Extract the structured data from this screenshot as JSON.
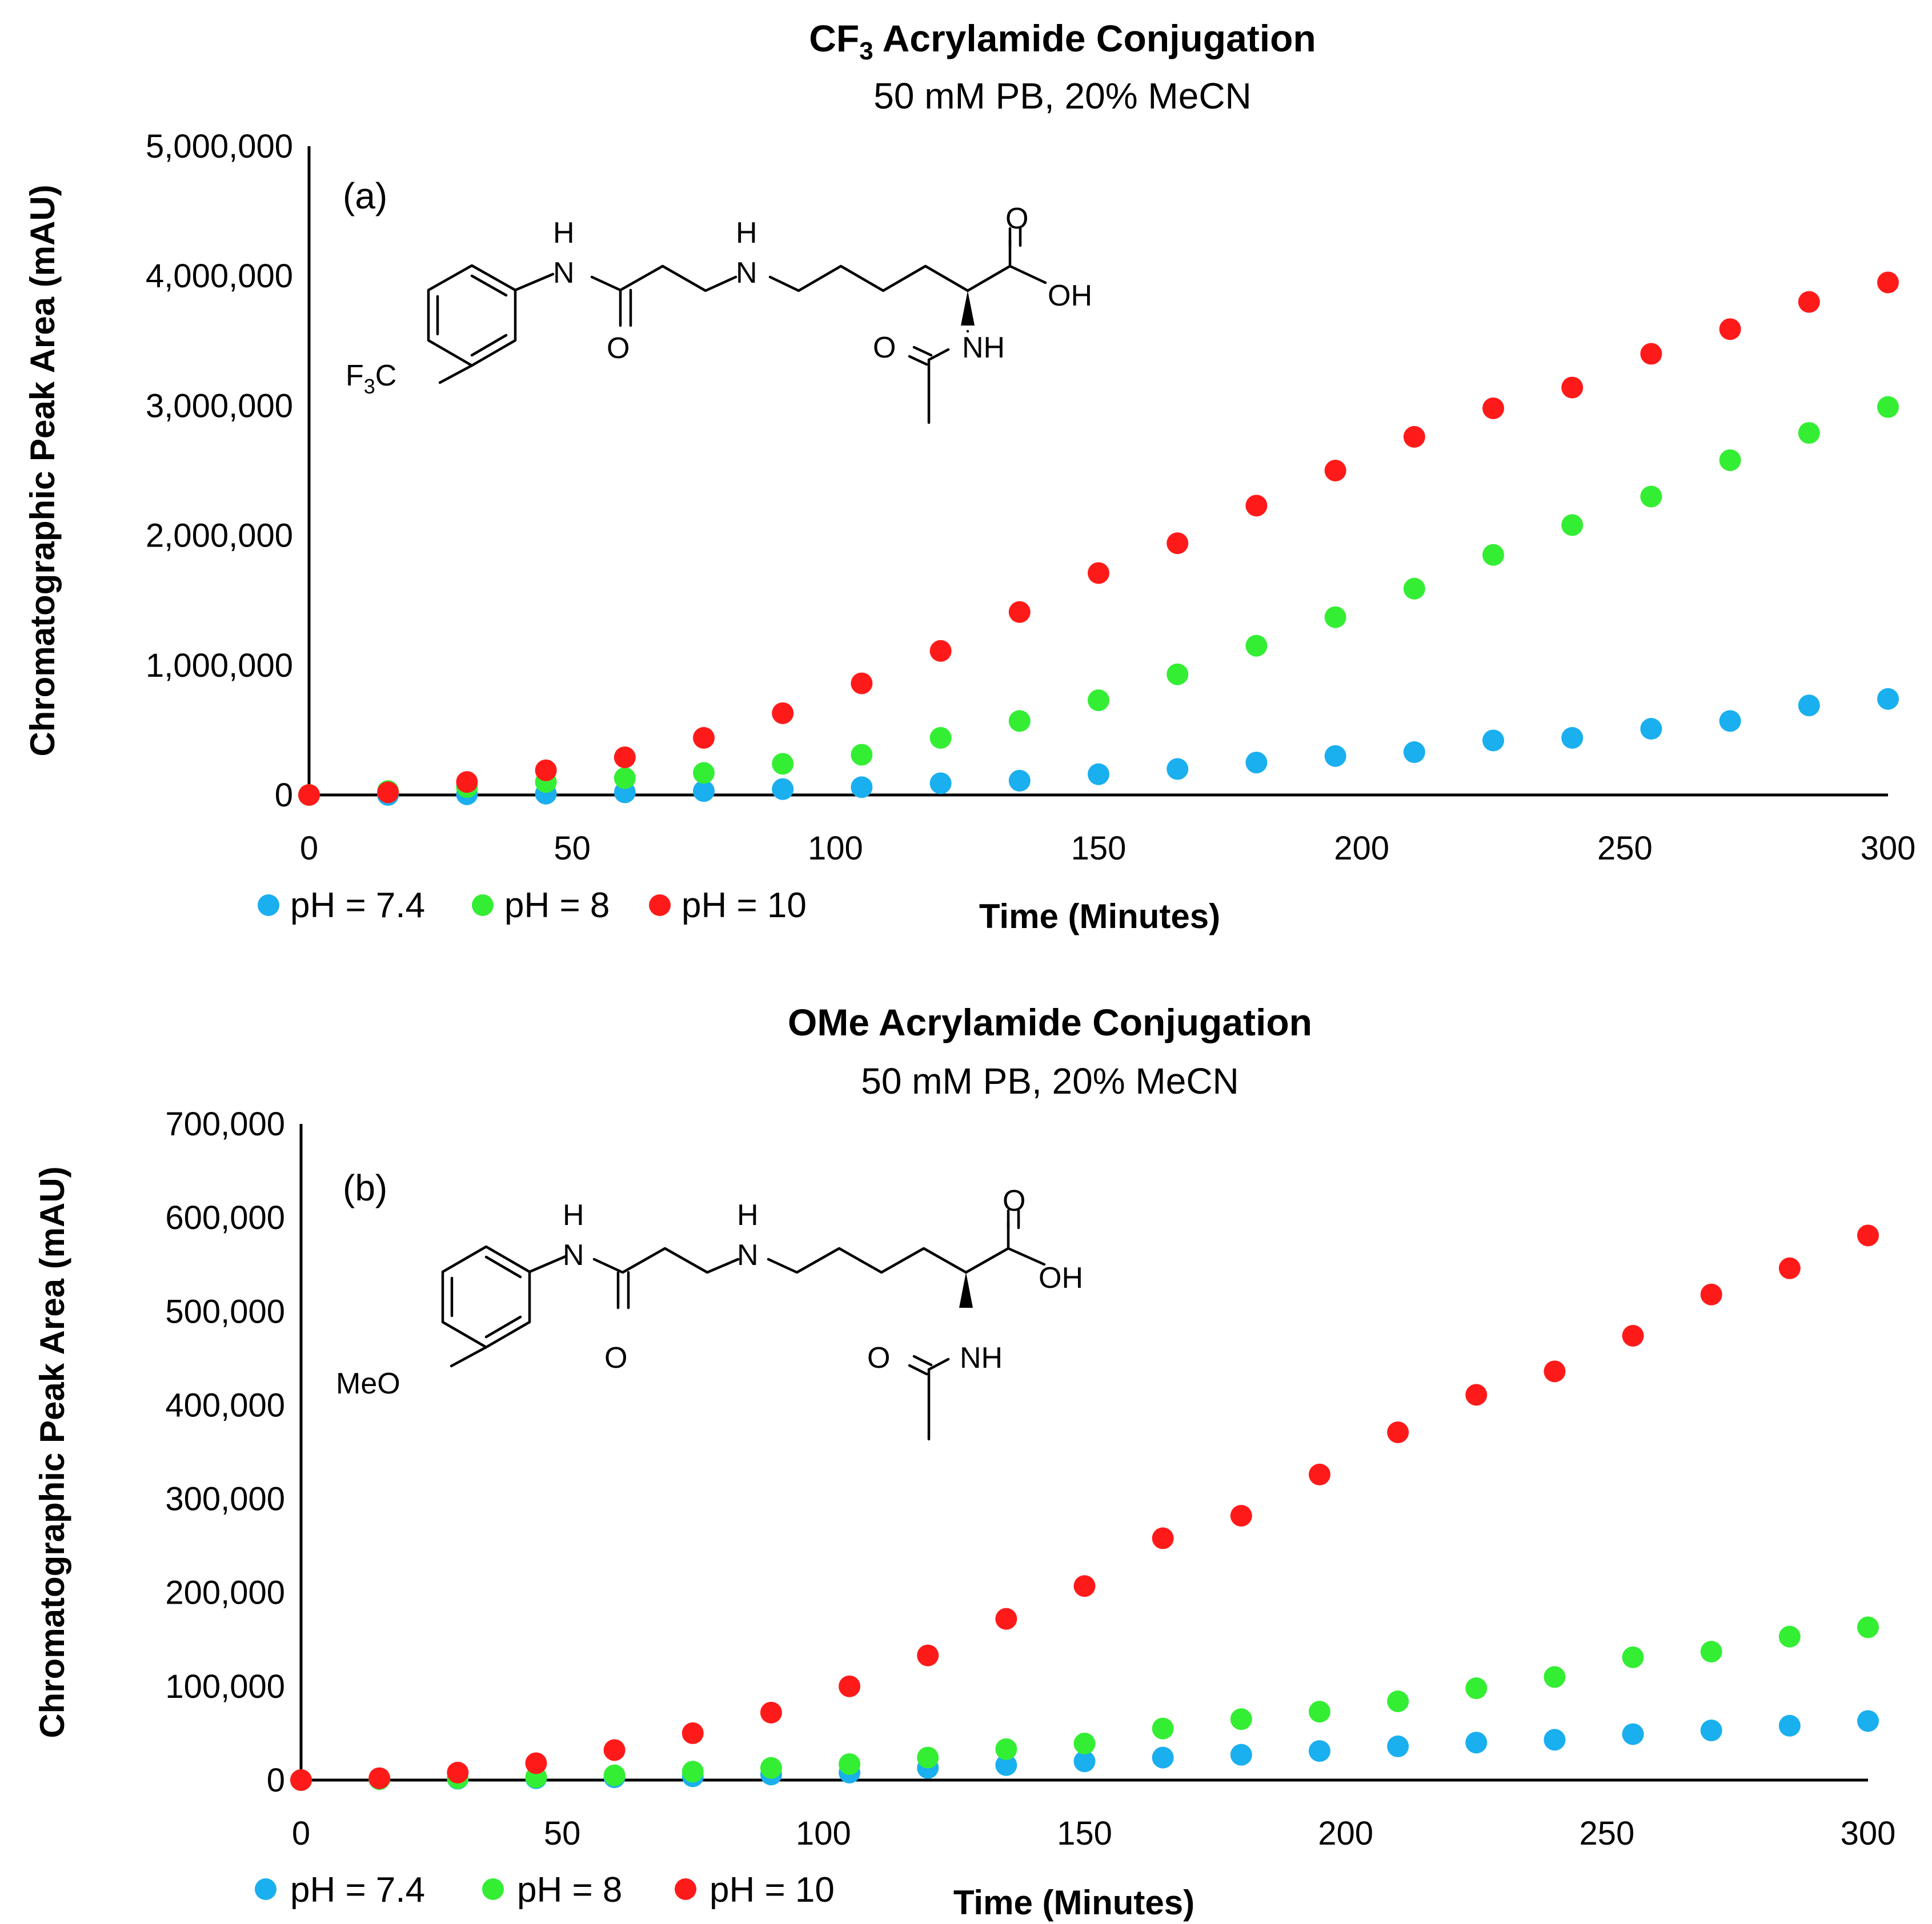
{
  "colors": {
    "ph74": "#1aafee",
    "ph8": "#34ee34",
    "ph10": "#ff1a1a",
    "axis": "#000000"
  },
  "chart_data": [
    {
      "panel_label": "(a)",
      "type": "scatter",
      "title_main": "CF",
      "title_subscript": "3",
      "title_rest": " Acrylamide Conjugation",
      "subtitle": "50 mM PB, 20% MeCN",
      "xlabel": "Time (Minutes)",
      "ylabel": "Chromatographic Peak Area (mAU)",
      "xlim": [
        0,
        300
      ],
      "ylim": [
        0,
        5000000
      ],
      "xticks": [
        0,
        50,
        100,
        150,
        200,
        250,
        300
      ],
      "xtick_labels": [
        "0",
        "50",
        "100",
        "150",
        "200",
        "250",
        "300"
      ],
      "yticks": [
        0,
        1000000,
        2000000,
        3000000,
        4000000,
        5000000
      ],
      "ytick_labels": [
        "0",
        "1,000,000",
        "2,000,000",
        "3,000,000",
        "4,000,000",
        "5,000,000"
      ],
      "grid": false,
      "legend_position": "bottom-left",
      "x": [
        0,
        15,
        30,
        45,
        60,
        75,
        90,
        105,
        120,
        135,
        150,
        165,
        180,
        195,
        210,
        225,
        240,
        255,
        270,
        285,
        300
      ],
      "series": [
        {
          "name": "pH = 7.4",
          "color_key": "ph74",
          "values": [
            0,
            0,
            5000,
            10000,
            20000,
            30000,
            45000,
            60000,
            90000,
            110000,
            160000,
            200000,
            250000,
            300000,
            330000,
            420000,
            440000,
            510000,
            570000,
            690000,
            740000
          ]
        },
        {
          "name": "pH = 8",
          "color_key": "ph8",
          "values": [
            0,
            30000,
            60000,
            100000,
            130000,
            170000,
            240000,
            310000,
            440000,
            570000,
            730000,
            930000,
            1150000,
            1370000,
            1590000,
            1850000,
            2080000,
            2300000,
            2580000,
            2790000,
            2990000
          ]
        },
        {
          "name": "pH = 10",
          "color_key": "ph10",
          "values": [
            0,
            20000,
            100000,
            190000,
            290000,
            440000,
            630000,
            860000,
            1110000,
            1410000,
            1710000,
            1940000,
            2230000,
            2500000,
            2760000,
            2980000,
            3140000,
            3400000,
            3590000,
            3800000,
            3950000
          ]
        }
      ],
      "structure": {
        "substituent": "F3C",
        "substituent_main": "F",
        "substituent_sub": "3",
        "substituent_end": "C",
        "atoms": {
          "h1": "H",
          "n1": "N",
          "h2": "H",
          "n2": "N",
          "o_amide": "O",
          "o_acid": "O",
          "oh": "OH",
          "nh": "NH",
          "o_acetyl": "O"
        }
      }
    },
    {
      "panel_label": "(b)",
      "type": "scatter",
      "title_main": "OMe Acrylamide Conjugation",
      "subtitle": "50 mM PB, 20% MeCN",
      "xlabel": "Time (Minutes)",
      "ylabel": "Chromatographic Peak Area (mAU)",
      "xlim": [
        0,
        300
      ],
      "ylim": [
        0,
        700000
      ],
      "xticks": [
        0,
        50,
        100,
        150,
        200,
        250,
        300
      ],
      "xtick_labels": [
        "0",
        "50",
        "100",
        "150",
        "200",
        "250",
        "300"
      ],
      "yticks": [
        0,
        100000,
        200000,
        300000,
        400000,
        500000,
        600000,
        700000
      ],
      "ytick_labels": [
        "0",
        "100,000",
        "200,000",
        "300,000",
        "400,000",
        "500,000",
        "600,000",
        "700,000"
      ],
      "grid": false,
      "legend_position": "bottom-left",
      "x": [
        0,
        15,
        30,
        45,
        60,
        75,
        90,
        105,
        120,
        135,
        150,
        165,
        180,
        195,
        210,
        225,
        240,
        255,
        270,
        285,
        300
      ],
      "series": [
        {
          "name": "pH = 7.4",
          "color_key": "ph74",
          "values": [
            0,
            1000,
            1500,
            2000,
            3000,
            4000,
            6000,
            8000,
            13000,
            16000,
            20000,
            24000,
            27000,
            31000,
            36000,
            40000,
            43000,
            49000,
            53000,
            58000,
            63000
          ]
        },
        {
          "name": "pH = 8",
          "color_key": "ph8",
          "values": [
            0,
            1000,
            2000,
            3000,
            5000,
            9000,
            13000,
            17000,
            24000,
            33000,
            39000,
            55000,
            65000,
            73000,
            84000,
            98000,
            110000,
            131000,
            137000,
            153000,
            163000
          ]
        },
        {
          "name": "pH = 10",
          "color_key": "ph10",
          "values": [
            0,
            2000,
            8000,
            18000,
            32000,
            50000,
            72000,
            100000,
            133000,
            172000,
            207000,
            258000,
            282000,
            326000,
            371000,
            411000,
            436000,
            474000,
            518000,
            546000,
            581000
          ]
        }
      ],
      "structure": {
        "substituent": "MeO",
        "atoms": {
          "h1": "H",
          "n1": "N",
          "h2": "H",
          "n2": "N",
          "o_amide": "O",
          "o_acid": "O",
          "oh": "OH",
          "nh": "NH",
          "o_acetyl": "O"
        }
      }
    }
  ]
}
